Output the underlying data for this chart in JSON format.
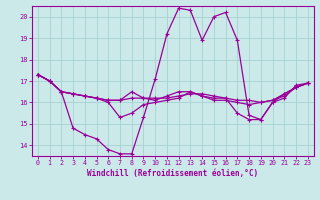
{
  "xlabel": "Windchill (Refroidissement éolien,°C)",
  "xlim": [
    -0.5,
    23.5
  ],
  "ylim": [
    13.5,
    20.5
  ],
  "xticks": [
    0,
    1,
    2,
    3,
    4,
    5,
    6,
    7,
    8,
    9,
    10,
    11,
    12,
    13,
    14,
    15,
    16,
    17,
    18,
    19,
    20,
    21,
    22,
    23
  ],
  "yticks": [
    14,
    15,
    16,
    17,
    18,
    19,
    20
  ],
  "bg_color": "#cce9e9",
  "grid_color": "#aad4d4",
  "line_color": "#990099",
  "line1_x": [
    0,
    1,
    2,
    3,
    4,
    5,
    6,
    7,
    8,
    9,
    10,
    11,
    12,
    13,
    14,
    15,
    16,
    17,
    18,
    19,
    20,
    21,
    22,
    23
  ],
  "line1_y": [
    17.3,
    17.0,
    16.5,
    14.8,
    14.5,
    14.3,
    13.8,
    13.6,
    13.6,
    15.3,
    17.1,
    19.2,
    20.4,
    20.3,
    18.9,
    20.0,
    20.2,
    18.9,
    15.4,
    15.2,
    16.0,
    16.2,
    16.8,
    16.9
  ],
  "line2_x": [
    0,
    1,
    2,
    3,
    4,
    5,
    6,
    7,
    8,
    9,
    10,
    11,
    12,
    13,
    14,
    15,
    16,
    17,
    18,
    19,
    20,
    21,
    22,
    23
  ],
  "line2_y": [
    17.3,
    17.0,
    16.5,
    16.4,
    16.3,
    16.2,
    16.1,
    16.1,
    16.2,
    16.2,
    16.2,
    16.2,
    16.3,
    16.4,
    16.4,
    16.3,
    16.2,
    16.1,
    16.1,
    16.0,
    16.1,
    16.4,
    16.7,
    16.9
  ],
  "line3_x": [
    0,
    1,
    2,
    3,
    4,
    5,
    6,
    7,
    8,
    9,
    10,
    11,
    12,
    13,
    14,
    15,
    16,
    17,
    18,
    19,
    20,
    21,
    22,
    23
  ],
  "line3_y": [
    17.3,
    17.0,
    16.5,
    16.4,
    16.3,
    16.2,
    16.0,
    15.3,
    15.5,
    15.9,
    16.0,
    16.1,
    16.2,
    16.5,
    16.3,
    16.2,
    16.2,
    15.5,
    15.2,
    15.2,
    16.0,
    16.4,
    16.7,
    16.9
  ],
  "line4_x": [
    0,
    1,
    2,
    3,
    4,
    5,
    6,
    7,
    8,
    9,
    10,
    11,
    12,
    13,
    14,
    15,
    16,
    17,
    18,
    19,
    20,
    21,
    22,
    23
  ],
  "line4_y": [
    17.3,
    17.0,
    16.5,
    16.4,
    16.3,
    16.2,
    16.1,
    16.1,
    16.5,
    16.2,
    16.1,
    16.3,
    16.5,
    16.5,
    16.3,
    16.1,
    16.1,
    16.0,
    15.9,
    16.0,
    16.1,
    16.3,
    16.7,
    16.9
  ]
}
